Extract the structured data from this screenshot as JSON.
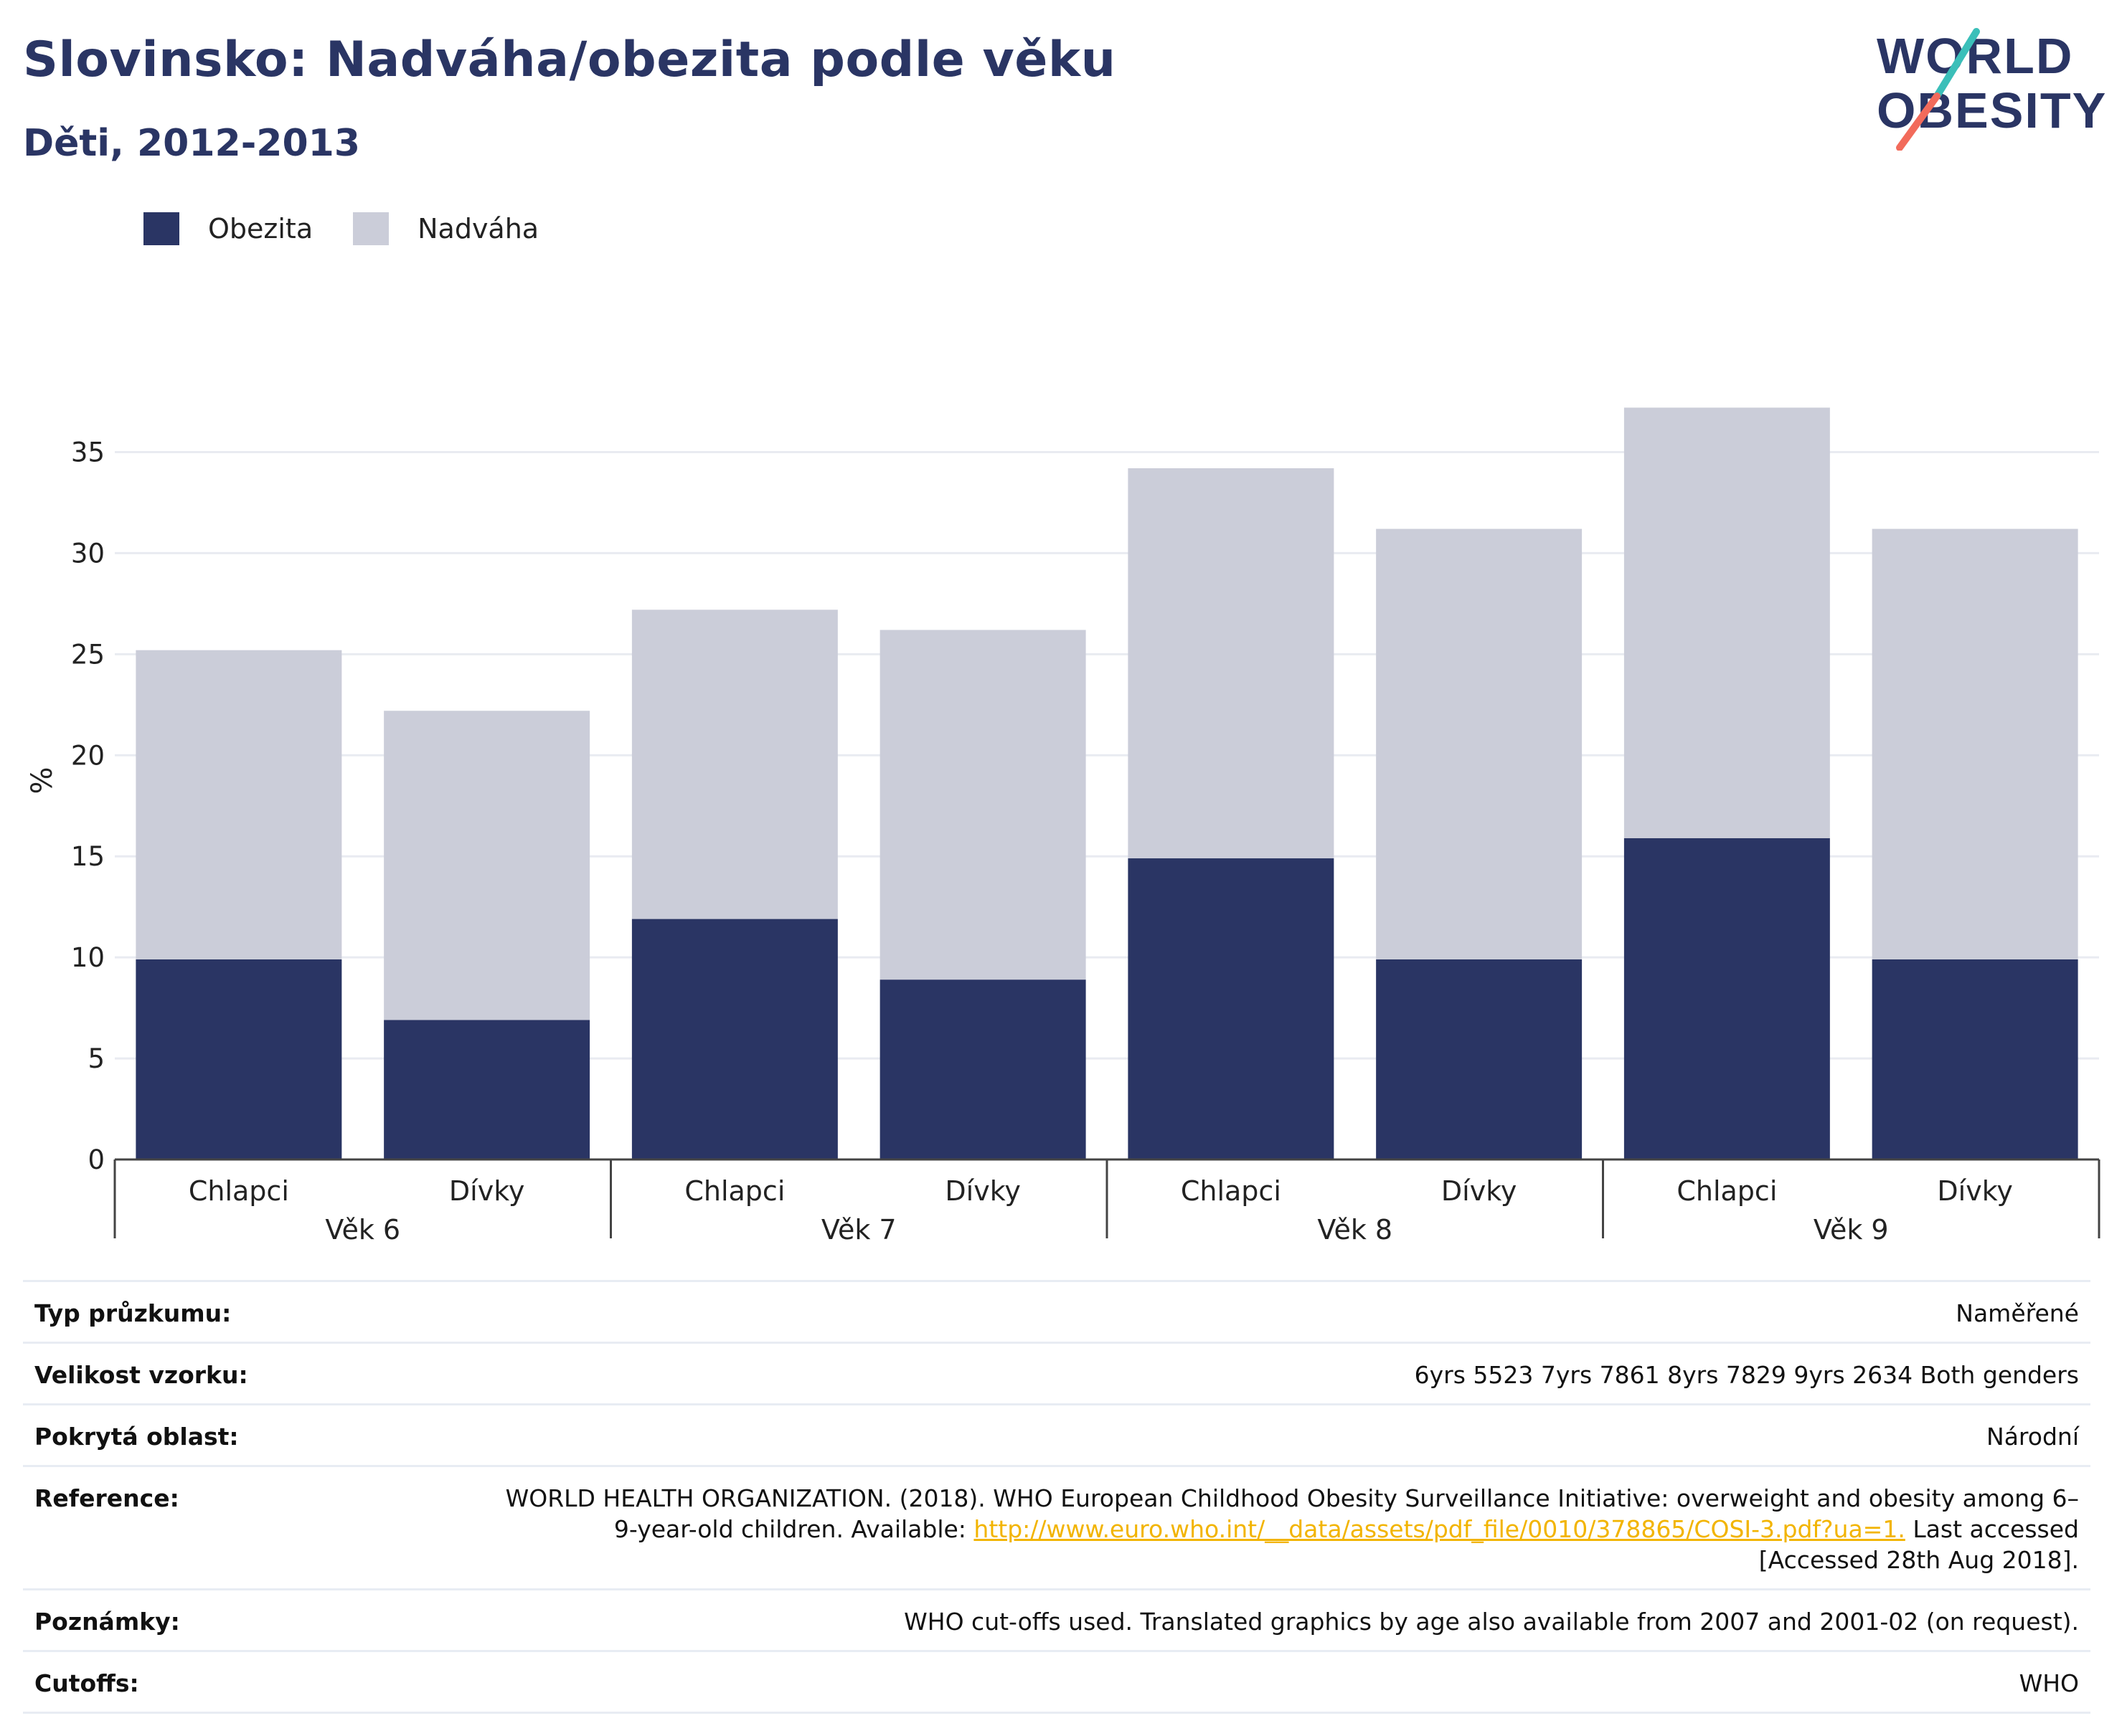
{
  "header": {
    "title": "Slovinsko: Nadváha/obezita podle věku",
    "subtitle": "Děti, 2012-2013"
  },
  "logo": {
    "line1": "WORLD",
    "line2": "OBESITY"
  },
  "colors": {
    "obesity": "#2a3564",
    "overweight": "#cbcdd9",
    "accent_teal": "#3bbfb9",
    "accent_coral": "#f26b5b",
    "link": "#f2b400"
  },
  "chart_data": {
    "type": "bar",
    "stacked": true,
    "ylabel": "%",
    "ylim": [
      0,
      37.5
    ],
    "yticks": [
      0,
      5,
      10,
      15,
      20,
      25,
      30,
      35
    ],
    "grid": true,
    "legend_position": "top-left",
    "groups": [
      {
        "label": "Věk 6",
        "categories": [
          "Chlapci",
          "Dívky"
        ]
      },
      {
        "label": "Věk 7",
        "categories": [
          "Chlapci",
          "Dívky"
        ]
      },
      {
        "label": "Věk 8",
        "categories": [
          "Chlapci",
          "Dívky"
        ]
      },
      {
        "label": "Věk 9",
        "categories": [
          "Chlapci",
          "Dívky"
        ]
      }
    ],
    "categories": [
      "Chlapci",
      "Dívky",
      "Chlapci",
      "Dívky",
      "Chlapci",
      "Dívky",
      "Chlapci",
      "Dívky"
    ],
    "series": [
      {
        "name": "Obezita",
        "color": "#2a3564",
        "values": [
          9.9,
          6.9,
          11.9,
          8.9,
          14.9,
          9.9,
          15.9,
          9.9
        ]
      },
      {
        "name": "Nadváha",
        "color": "#cbcdd9",
        "values": [
          15.3,
          15.3,
          15.3,
          17.3,
          19.3,
          21.3,
          21.3,
          21.3
        ]
      }
    ]
  },
  "info": [
    {
      "key": "Typ průzkumu:",
      "value": "Naměřené"
    },
    {
      "key": "Velikost vzorku:",
      "value": "6yrs 5523 7yrs 7861 8yrs 7829 9yrs 2634 Both genders"
    },
    {
      "key": "Pokrytá oblast:",
      "value": "Národní"
    },
    {
      "key": "Reference:",
      "value_before": "WORLD HEALTH ORGANIZATION. (2018). WHO European Childhood Obesity Surveillance Initiative: overweight and obesity among 6–9-year-old children. Available: ",
      "link": "http://www.euro.who.int/__data/assets/pdf_file/0010/378865/COSI-3.pdf?ua=1.",
      "value_after": " Last accessed [Accessed 28th Aug 2018]."
    },
    {
      "key": "Poznámky:",
      "value": "WHO cut-offs used. Translated graphics by age also available from 2007 and 2001-02 (on request)."
    },
    {
      "key": "Cutoffs:",
      "value": "WHO"
    }
  ]
}
